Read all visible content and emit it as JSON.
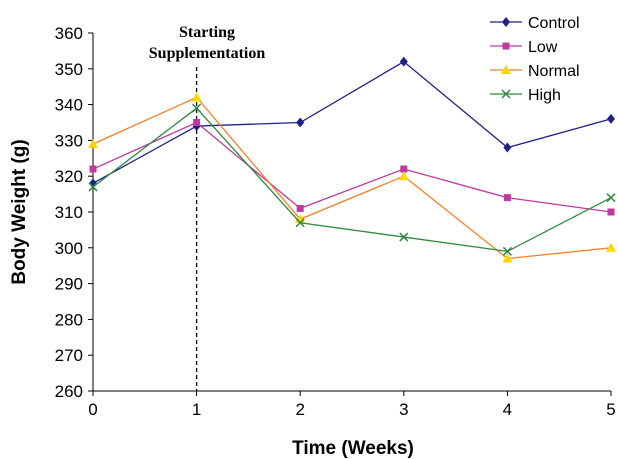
{
  "chart_data": {
    "type": "line",
    "title": "",
    "xlabel": "Time (Weeks)",
    "ylabel": "Body Weight (g)",
    "x": [
      0,
      1,
      2,
      3,
      4,
      5
    ],
    "xlim": [
      0,
      5
    ],
    "ylim": [
      260,
      360
    ],
    "yticks": [
      260,
      270,
      280,
      290,
      300,
      310,
      320,
      330,
      340,
      350,
      360
    ],
    "grid": false,
    "legend_position": "top-right",
    "annotation": {
      "lines": [
        "Starting",
        "Supplementation"
      ],
      "x": 1,
      "style": "dashed vertical line"
    },
    "series": [
      {
        "name": "Control",
        "color": "#1f1f8c",
        "marker": "diamond",
        "values": [
          318,
          334,
          335,
          352,
          328,
          336
        ]
      },
      {
        "name": "Low",
        "color": "#c0399f",
        "marker": "square",
        "values": [
          322,
          335,
          311,
          322,
          314,
          310
        ]
      },
      {
        "name": "Normal",
        "color": "#ff7f27",
        "marker": "triangle",
        "marker_color": "#ffd700",
        "values": [
          329,
          342,
          308,
          320,
          297,
          300
        ]
      },
      {
        "name": "High",
        "color": "#2e8b3e",
        "marker": "x",
        "values": [
          317,
          339,
          307,
          303,
          299,
          314
        ]
      }
    ]
  }
}
